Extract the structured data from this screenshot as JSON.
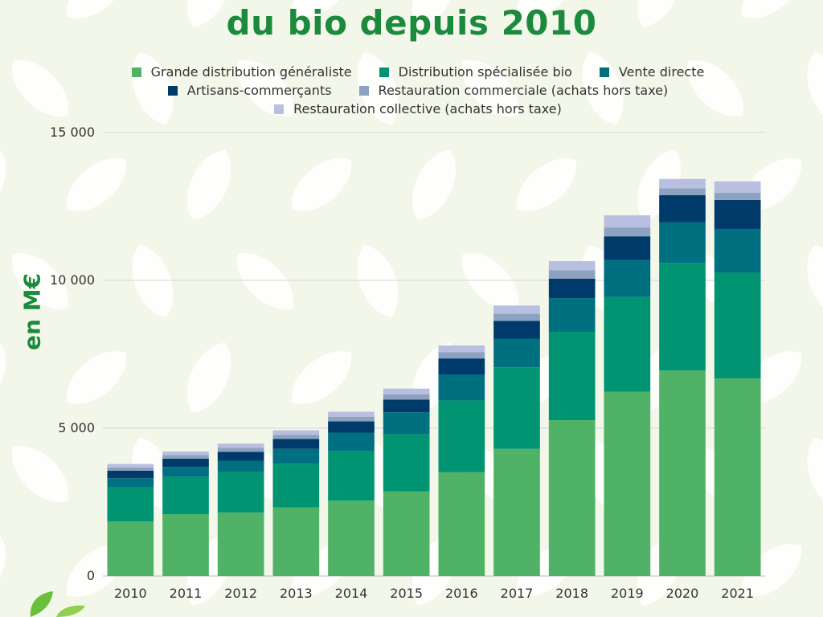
{
  "title": "du bio depuis 2010",
  "colors": {
    "title": "#1c8a3c",
    "background": "#f3f7ea",
    "leaf": "#ffffff"
  },
  "chart_data": {
    "type": "bar",
    "stacked": true,
    "title": "",
    "xlabel": "",
    "ylabel": "en M€",
    "ylim": [
      0,
      15000
    ],
    "yticks": [
      0,
      5000,
      10000,
      15000
    ],
    "ytick_labels": [
      "0",
      "5 000",
      "10 000",
      "15 000"
    ],
    "grid": true,
    "legend_position": "top",
    "categories": [
      "2010",
      "2011",
      "2012",
      "2013",
      "2014",
      "2015",
      "2016",
      "2017",
      "2018",
      "2019",
      "2020",
      "2021"
    ],
    "series": [
      {
        "name": "Grande distribution généraliste",
        "color": "#50b266",
        "values": [
          1840,
          2090,
          2150,
          2320,
          2550,
          2860,
          3510,
          4300,
          5270,
          6230,
          6950,
          6680
        ]
      },
      {
        "name": "Distribution spécialisée bio",
        "color": "#009473",
        "values": [
          1160,
          1260,
          1360,
          1480,
          1670,
          1940,
          2430,
          2760,
          2990,
          3210,
          3640,
          3580
        ]
      },
      {
        "name": "Vente directe",
        "color": "#006f80",
        "values": [
          310,
          340,
          390,
          500,
          630,
          740,
          880,
          970,
          1140,
          1250,
          1370,
          1480
        ]
      },
      {
        "name": "Artisans-commerçants",
        "color": "#003a6b",
        "values": [
          250,
          280,
          300,
          340,
          380,
          430,
          540,
          600,
          660,
          800,
          920,
          980
        ]
      },
      {
        "name": "Restauration commerciale (achats hors taxe)",
        "color": "#8da2c0",
        "values": [
          110,
          120,
          140,
          140,
          160,
          180,
          210,
          240,
          280,
          300,
          230,
          240
        ]
      },
      {
        "name": "Restauration collective (achats hors taxe)",
        "color": "#b9bfe0",
        "values": [
          120,
          120,
          140,
          150,
          170,
          190,
          230,
          280,
          310,
          410,
          320,
          390
        ]
      }
    ]
  }
}
